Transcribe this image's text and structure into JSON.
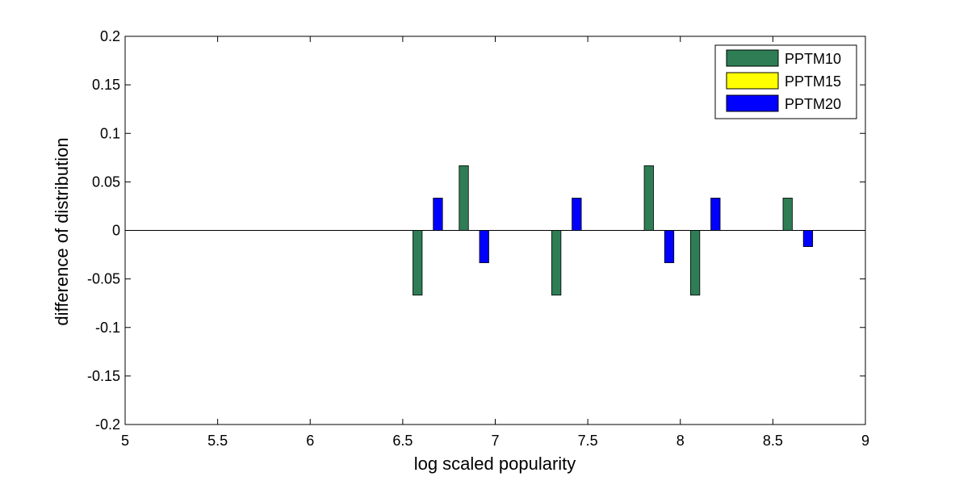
{
  "chart_data": {
    "type": "bar",
    "title": "",
    "xlabel": "log scaled popularity",
    "ylabel": "difference of distribution",
    "xlim": [
      5,
      9
    ],
    "ylim": [
      -0.2,
      0.2
    ],
    "xticks": [
      5,
      5.5,
      6,
      6.5,
      7,
      7.5,
      8,
      8.5,
      9
    ],
    "yticks": [
      -0.2,
      -0.15,
      -0.1,
      -0.05,
      0,
      0.05,
      0.1,
      0.15,
      0.2
    ],
    "xtick_labels": [
      "5",
      "5.5",
      "6",
      "6.5",
      "7",
      "7.5",
      "8",
      "8.5",
      "9"
    ],
    "ytick_labels": [
      "-0.2",
      "-0.15",
      "-0.1",
      "-0.05",
      "0",
      "0.05",
      "0.1",
      "0.15",
      "0.2"
    ],
    "grid": false,
    "legend_position": "top-right",
    "bar_width": 0.05,
    "series": [
      {
        "name": "PPTM10",
        "color": "#2e7d55",
        "x": [
          6.58,
          6.83,
          7.33,
          7.83,
          8.08,
          8.58
        ],
        "values": [
          -0.0667,
          0.0667,
          -0.0667,
          0.0667,
          -0.0667,
          0.0333
        ]
      },
      {
        "name": "PPTM15",
        "color": "#ffff00",
        "x": [],
        "values": []
      },
      {
        "name": "PPTM20",
        "color": "#0000ff",
        "x": [
          6.69,
          6.94,
          7.44,
          7.94,
          8.19,
          8.69
        ],
        "values": [
          0.0333,
          -0.0333,
          0.0333,
          -0.0333,
          0.0333,
          -0.0167
        ]
      }
    ]
  }
}
